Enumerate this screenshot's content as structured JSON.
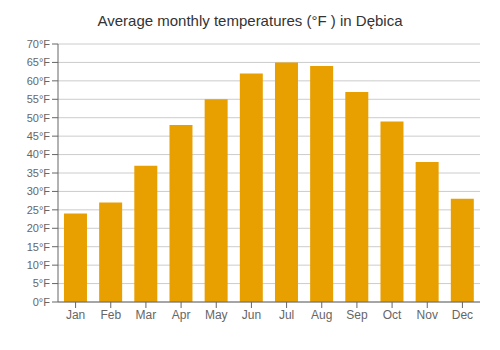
{
  "chart_data": {
    "type": "bar",
    "title": "Average monthly temperatures (°F ) in Dębica",
    "categories": [
      "Jan",
      "Feb",
      "Mar",
      "Apr",
      "May",
      "Jun",
      "Jul",
      "Aug",
      "Sep",
      "Oct",
      "Nov",
      "Dec"
    ],
    "values": [
      24.0,
      27.0,
      37.0,
      48.0,
      55.0,
      62.0,
      65.0,
      64.0,
      57.0,
      49.0,
      38.0,
      28.0
    ],
    "color": "#E8A000",
    "ylim": [
      0,
      70
    ],
    "yticks": [
      {
        "value": 0,
        "label": "0°F"
      },
      {
        "value": 5,
        "label": "5°F"
      },
      {
        "value": 10,
        "label": "10°F"
      },
      {
        "value": 15,
        "label": "15°F"
      },
      {
        "value": 20,
        "label": "20°F"
      },
      {
        "value": 25,
        "label": "25°F"
      },
      {
        "value": 30,
        "label": "30°F"
      },
      {
        "value": 35,
        "label": "35°F"
      },
      {
        "value": 40,
        "label": "40°F"
      },
      {
        "value": 45,
        "label": "45°F"
      },
      {
        "value": 50,
        "label": "50°F"
      },
      {
        "value": 55,
        "label": "55°F"
      },
      {
        "value": 60,
        "label": "60°F"
      },
      {
        "value": 65,
        "label": "65°F"
      },
      {
        "value": 70,
        "label": "70°F"
      }
    ],
    "grid": true
  }
}
